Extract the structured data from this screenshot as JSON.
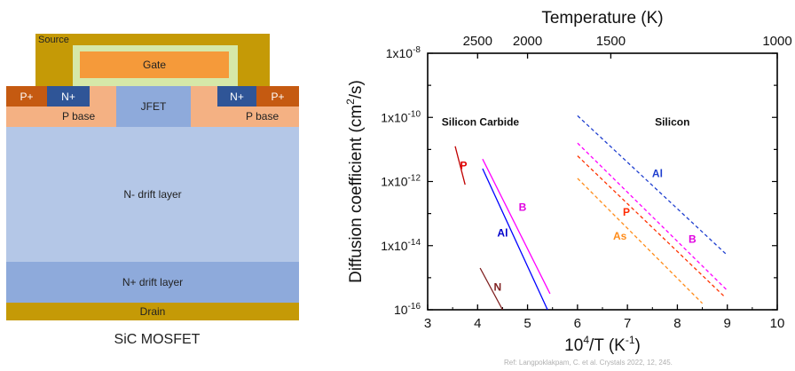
{
  "mosfet": {
    "caption": "SiC MOSFET",
    "layers": {
      "source": "Source",
      "gate": "Gate",
      "p_plus_left": "P+",
      "n_plus_left": "N+",
      "jfet": "JFET",
      "n_plus_right": "N+",
      "p_plus_right": "P+",
      "p_base_left": "P base",
      "p_base_right": "P base",
      "n_minus_drift": "N- drift layer",
      "n_plus_drift": "N+ drift layer",
      "drain": "Drain"
    },
    "colors": {
      "metal": "#c59a06",
      "gate_oxide": "#d6e8a8",
      "gate_poly": "#f59a3a",
      "p_plus": "#c55a11",
      "n_plus": "#2f5597",
      "p_base": "#f4b183",
      "jfet": "#8eaadb",
      "n_minus": "#b4c7e7",
      "n_plus_drift": "#8eaadb"
    }
  },
  "chart_data": {
    "type": "line",
    "xlabel": "10^4/T (K^-1)",
    "ylabel": "Diffusion coefficient (cm^2/s)",
    "top_axis_label": "Temperature (K)",
    "xlim": [
      3,
      10
    ],
    "ylim_log10": [
      -16,
      -8
    ],
    "log_y": true,
    "x_ticks": [
      3,
      4,
      5,
      6,
      7,
      8,
      9,
      10
    ],
    "y_ticks": [
      {
        "exp": -8,
        "mant": "1x10",
        "sup": "-8"
      },
      {
        "exp": -10,
        "mant": "1x10",
        "sup": "-10"
      },
      {
        "exp": -12,
        "mant": "1x10",
        "sup": "-12"
      },
      {
        "exp": -14,
        "mant": "1x10",
        "sup": "-14"
      },
      {
        "exp": -16,
        "mant": "10",
        "sup": "-16"
      }
    ],
    "top_ticks": [
      {
        "label": "2500",
        "x": 4.0
      },
      {
        "label": "2000",
        "x": 5.0
      },
      {
        "label": "1500",
        "x": 6.667
      },
      {
        "label": "1000",
        "x": 10.0
      }
    ],
    "group_labels": {
      "sic": "Silicon Carbide",
      "si": "Silicon"
    },
    "series": [
      {
        "name": "P",
        "material": "SiC",
        "style": "solid",
        "color": "#c00000",
        "points": [
          [
            3.55,
            -10.9
          ],
          [
            3.75,
            -12.1
          ]
        ]
      },
      {
        "name": "B",
        "material": "SiC",
        "style": "solid",
        "color": "#ff00ff",
        "points": [
          [
            4.1,
            -11.3
          ],
          [
            5.45,
            -15.5
          ]
        ]
      },
      {
        "name": "Al",
        "material": "SiC",
        "style": "solid",
        "color": "#0000ff",
        "points": [
          [
            4.1,
            -11.6
          ],
          [
            5.4,
            -16.0
          ]
        ]
      },
      {
        "name": "N",
        "material": "SiC",
        "style": "solid",
        "color": "#7f1f1f",
        "points": [
          [
            4.05,
            -14.7
          ],
          [
            4.5,
            -16.0
          ]
        ]
      },
      {
        "name": "Al",
        "material": "Si",
        "style": "dashed",
        "color": "#1f3fcf",
        "points": [
          [
            6.0,
            -9.95
          ],
          [
            9.0,
            -14.3
          ]
        ]
      },
      {
        "name": "B",
        "material": "Si",
        "style": "dashed",
        "color": "#ff00ff",
        "points": [
          [
            6.0,
            -10.8
          ],
          [
            9.0,
            -15.4
          ]
        ]
      },
      {
        "name": "P",
        "material": "Si",
        "style": "dashed",
        "color": "#ff3300",
        "points": [
          [
            6.0,
            -11.2
          ],
          [
            8.95,
            -15.6
          ]
        ]
      },
      {
        "name": "As",
        "material": "Si",
        "style": "dashed",
        "color": "#ff8c1a",
        "points": [
          [
            6.0,
            -11.9
          ],
          [
            8.5,
            -15.8
          ]
        ]
      }
    ],
    "series_labels": [
      {
        "text": "P",
        "color": "#e00000",
        "x": 3.72,
        "y": -11.5
      },
      {
        "text": "B",
        "color": "#e000e0",
        "x": 4.9,
        "y": -12.8
      },
      {
        "text": "Al",
        "color": "#0000cc",
        "x": 4.5,
        "y": -13.6
      },
      {
        "text": "N",
        "color": "#7f1f1f",
        "x": 4.4,
        "y": -15.3
      },
      {
        "text": "Al",
        "color": "#1f3fcf",
        "x": 7.6,
        "y": -11.75
      },
      {
        "text": "P",
        "color": "#ff2a00",
        "x": 6.98,
        "y": -12.95
      },
      {
        "text": "As",
        "color": "#ff8c1a",
        "x": 6.85,
        "y": -13.7
      },
      {
        "text": "B",
        "color": "#e000e0",
        "x": 8.3,
        "y": -13.8
      }
    ],
    "grid": false,
    "legend": "none"
  },
  "reference": "Ref: Langpoklakpam, C. et al. Crystals 2022, 12, 245."
}
